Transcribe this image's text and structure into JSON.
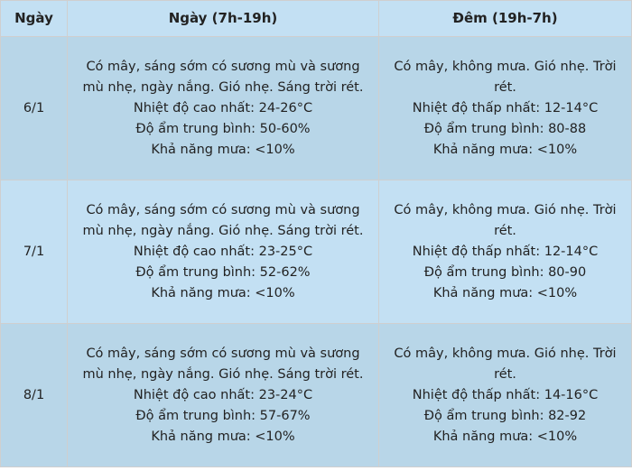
{
  "headers": [
    "Ngày",
    "Ngày (7h-19h)",
    "Đêm (19h-7h)"
  ],
  "rows": [
    {
      "date": "6/1",
      "day": [
        "Có mây, sáng sớm có sương mù và sương mù nhẹ, ngày nắng. Gió nhẹ. Sáng trời rét.",
        "Nhiệt độ cao nhất: 24-26°C",
        "Độ ẩm trung bình: 50-60%",
        "Khả năng mưa: <10%"
      ],
      "night": [
        "Có mây, không mưa. Gió nhẹ. Trời rét.",
        "Nhiệt độ thấp nhất: 12-14°C",
        "Độ ẩm trung bình: 80-88",
        "Khả năng mưa: <10%"
      ]
    },
    {
      "date": "7/1",
      "day": [
        "Có mây, sáng sớm có sương mù và sương mù nhẹ, ngày nắng. Gió nhẹ. Sáng trời rét.",
        "Nhiệt độ cao nhất: 23-25°C",
        "Độ ẩm trung bình: 52-62%",
        "Khả năng mưa: <10%"
      ],
      "night": [
        "Có mây, không mưa. Gió nhẹ. Trời rét.",
        "Nhiệt độ thấp nhất: 12-14°C",
        "Độ ẩm trung bình: 80-90",
        "Khả năng mưa: <10%"
      ]
    },
    {
      "date": "8/1",
      "day": [
        "Có mây, sáng sớm có sương mù và sương mù nhẹ, ngày nắng. Gió nhẹ. Sáng trời rét.",
        "Nhiệt độ cao nhất: 23-24°C",
        "Độ ẩm trung bình: 57-67%",
        "Khả năng mưa: <10%"
      ],
      "night": [
        "Có mây, không mưa. Gió nhẹ. Trời rét.",
        "Nhiệt độ thấp nhất: 14-16°C",
        "Độ ẩm trung bình: 82-92",
        "Khả năng mưa: <10%"
      ]
    }
  ]
}
